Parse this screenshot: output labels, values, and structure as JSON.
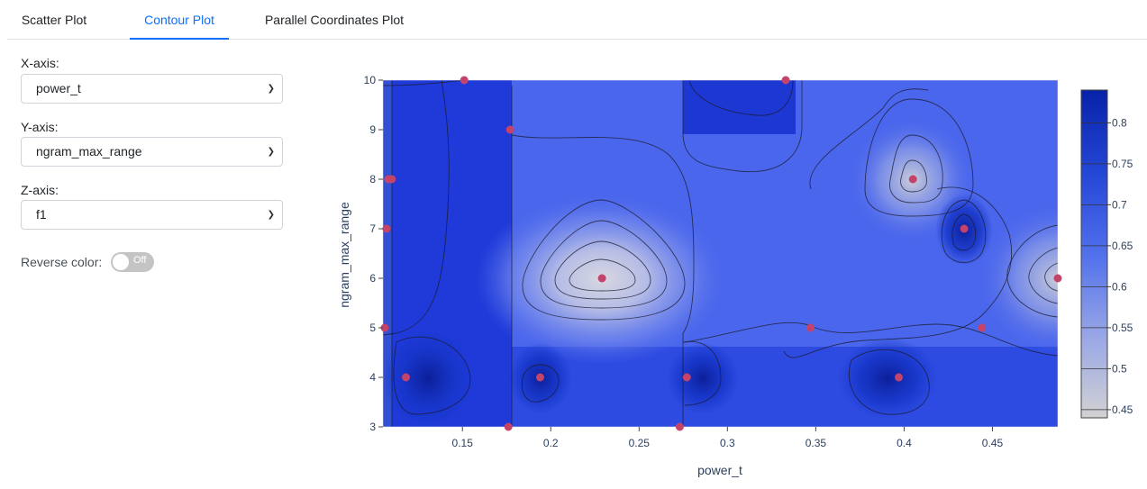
{
  "tabs": [
    {
      "label": "Scatter Plot",
      "active": false
    },
    {
      "label": "Contour Plot",
      "active": true
    },
    {
      "label": "Parallel Coordinates Plot",
      "active": false
    }
  ],
  "controls": {
    "x_axis": {
      "label": "X-axis:",
      "value": "power_t"
    },
    "y_axis": {
      "label": "Y-axis:",
      "value": "ngram_max_range"
    },
    "z_axis": {
      "label": "Z-axis:",
      "value": "f1"
    },
    "reverse_color": {
      "label": "Reverse color:",
      "state": "Off"
    }
  },
  "colors": {
    "accent": "#0d6efd",
    "point": "#c4436a",
    "high": "#0722a8",
    "low": "#d2d2d2"
  },
  "chart_data": {
    "type": "contour",
    "xlabel": "power_t",
    "ylabel": "ngram_max_range",
    "xlim": [
      0.105,
      0.487
    ],
    "ylim": [
      3,
      10
    ],
    "x_ticks": [
      0.15,
      0.2,
      0.25,
      0.3,
      0.35,
      0.4,
      0.45
    ],
    "y_ticks": [
      3,
      4,
      5,
      6,
      7,
      8,
      9,
      10
    ],
    "colorbar": {
      "min": 0.44,
      "max": 0.84,
      "ticks": [
        0.45,
        0.5,
        0.55,
        0.6,
        0.65,
        0.7,
        0.75,
        0.8
      ]
    },
    "points": [
      {
        "x": 0.151,
        "y": 10
      },
      {
        "x": 0.333,
        "y": 10
      },
      {
        "x": 0.177,
        "y": 9
      },
      {
        "x": 0.108,
        "y": 8
      },
      {
        "x": 0.11,
        "y": 8
      },
      {
        "x": 0.405,
        "y": 8
      },
      {
        "x": 0.107,
        "y": 7
      },
      {
        "x": 0.434,
        "y": 7
      },
      {
        "x": 0.229,
        "y": 6
      },
      {
        "x": 0.487,
        "y": 6
      },
      {
        "x": 0.106,
        "y": 5
      },
      {
        "x": 0.347,
        "y": 5
      },
      {
        "x": 0.444,
        "y": 5
      },
      {
        "x": 0.118,
        "y": 4
      },
      {
        "x": 0.194,
        "y": 4
      },
      {
        "x": 0.277,
        "y": 4
      },
      {
        "x": 0.397,
        "y": 4
      },
      {
        "x": 0.176,
        "y": 3
      },
      {
        "x": 0.273,
        "y": 3
      }
    ]
  }
}
